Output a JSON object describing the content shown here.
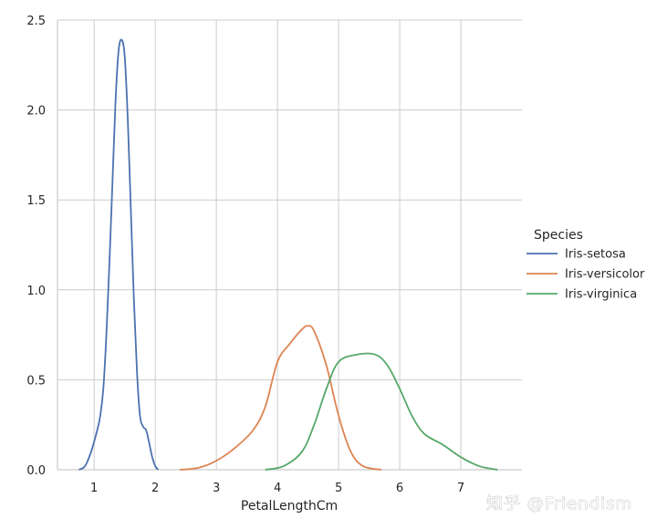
{
  "chart_data": {
    "type": "line",
    "title": "",
    "xlabel": "PetalLengthCm",
    "ylabel": "",
    "xlim": [
      0.4,
      8.0
    ],
    "ylim": [
      0,
      2.5
    ],
    "xticks": [
      1,
      2,
      3,
      4,
      5,
      6,
      7
    ],
    "yticks": [
      0.0,
      0.5,
      1.0,
      1.5,
      2.0,
      2.5
    ],
    "xtick_labels": [
      "1",
      "2",
      "3",
      "4",
      "5",
      "6",
      "7"
    ],
    "ytick_labels": [
      "0.0",
      "0.5",
      "1.0",
      "1.5",
      "2.0",
      "2.5"
    ],
    "grid": true,
    "legend": {
      "title": "Species",
      "placement": "right"
    },
    "series": [
      {
        "name": "Iris-setosa",
        "color": "#4c72b0",
        "points": [
          [
            0.75,
            0.0
          ],
          [
            0.85,
            0.02
          ],
          [
            0.95,
            0.1
          ],
          [
            1.05,
            0.22
          ],
          [
            1.1,
            0.3
          ],
          [
            1.15,
            0.45
          ],
          [
            1.2,
            0.75
          ],
          [
            1.25,
            1.15
          ],
          [
            1.3,
            1.6
          ],
          [
            1.35,
            2.05
          ],
          [
            1.4,
            2.33
          ],
          [
            1.45,
            2.39
          ],
          [
            1.5,
            2.3
          ],
          [
            1.55,
            1.95
          ],
          [
            1.6,
            1.45
          ],
          [
            1.65,
            0.95
          ],
          [
            1.7,
            0.55
          ],
          [
            1.75,
            0.3
          ],
          [
            1.8,
            0.24
          ],
          [
            1.85,
            0.22
          ],
          [
            1.9,
            0.15
          ],
          [
            1.95,
            0.07
          ],
          [
            2.0,
            0.02
          ],
          [
            2.05,
            0.0
          ]
        ]
      },
      {
        "name": "Iris-versicolor",
        "color": "#dd8452",
        "points": [
          [
            2.4,
            0.0
          ],
          [
            2.7,
            0.01
          ],
          [
            3.0,
            0.05
          ],
          [
            3.3,
            0.12
          ],
          [
            3.6,
            0.22
          ],
          [
            3.8,
            0.35
          ],
          [
            4.0,
            0.6
          ],
          [
            4.2,
            0.7
          ],
          [
            4.4,
            0.78
          ],
          [
            4.5,
            0.8
          ],
          [
            4.6,
            0.77
          ],
          [
            4.8,
            0.58
          ],
          [
            5.0,
            0.3
          ],
          [
            5.2,
            0.1
          ],
          [
            5.4,
            0.02
          ],
          [
            5.7,
            0.0
          ]
        ]
      },
      {
        "name": "Iris-virginica",
        "color": "#55a868",
        "points": [
          [
            3.8,
            0.0
          ],
          [
            4.1,
            0.02
          ],
          [
            4.4,
            0.1
          ],
          [
            4.6,
            0.25
          ],
          [
            4.8,
            0.45
          ],
          [
            5.0,
            0.6
          ],
          [
            5.3,
            0.64
          ],
          [
            5.6,
            0.64
          ],
          [
            5.8,
            0.58
          ],
          [
            6.0,
            0.45
          ],
          [
            6.2,
            0.3
          ],
          [
            6.4,
            0.2
          ],
          [
            6.7,
            0.14
          ],
          [
            7.0,
            0.07
          ],
          [
            7.3,
            0.02
          ],
          [
            7.6,
            0.0
          ]
        ]
      }
    ]
  },
  "watermark": "知乎 @Friendism"
}
